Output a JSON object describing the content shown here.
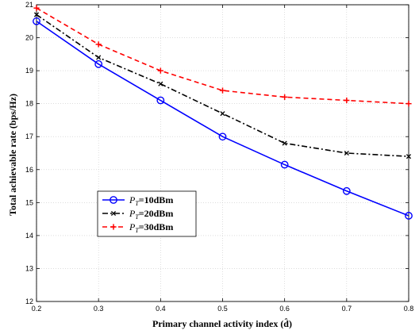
{
  "chart_data": {
    "type": "line",
    "title": "",
    "xlabel": "Primary channel activity index (d̂)",
    "ylabel": "Total achievable rate (bps/Hz)",
    "xlim": [
      0.2,
      0.8
    ],
    "ylim": [
      12,
      21
    ],
    "xticks": [
      "0.2",
      "0.3",
      "0.4",
      "0.5",
      "0.6",
      "0.7",
      "0.8"
    ],
    "yticks": [
      "12",
      "13",
      "14",
      "15",
      "16",
      "17",
      "18",
      "19",
      "20",
      "21"
    ],
    "grid": true,
    "legend_position": "center-left",
    "x": [
      0.2,
      0.3,
      0.4,
      0.5,
      0.6,
      0.7,
      0.8
    ],
    "series": [
      {
        "name": "P_T=10dBm",
        "legend_prefix": "P",
        "legend_sub": "T",
        "legend_suffix": "=10dBm",
        "values": [
          20.5,
          19.2,
          18.1,
          17.0,
          16.15,
          15.35,
          14.6
        ],
        "color": "#0000ff",
        "marker": "circle",
        "dash": "solid"
      },
      {
        "name": "P_T=20dBm",
        "legend_prefix": "P",
        "legend_sub": "T",
        "legend_suffix": "=20dBm",
        "values": [
          20.7,
          19.4,
          18.6,
          17.7,
          16.8,
          16.5,
          16.4
        ],
        "color": "#000000",
        "marker": "x",
        "dash": "dashdot"
      },
      {
        "name": "P_T=30dBm",
        "legend_prefix": "P",
        "legend_sub": "T",
        "legend_suffix": "=30dBm",
        "values": [
          20.9,
          19.8,
          19.0,
          18.4,
          18.2,
          18.1,
          18.0
        ],
        "color": "#ff0000",
        "marker": "plus",
        "dash": "dashed"
      }
    ]
  }
}
